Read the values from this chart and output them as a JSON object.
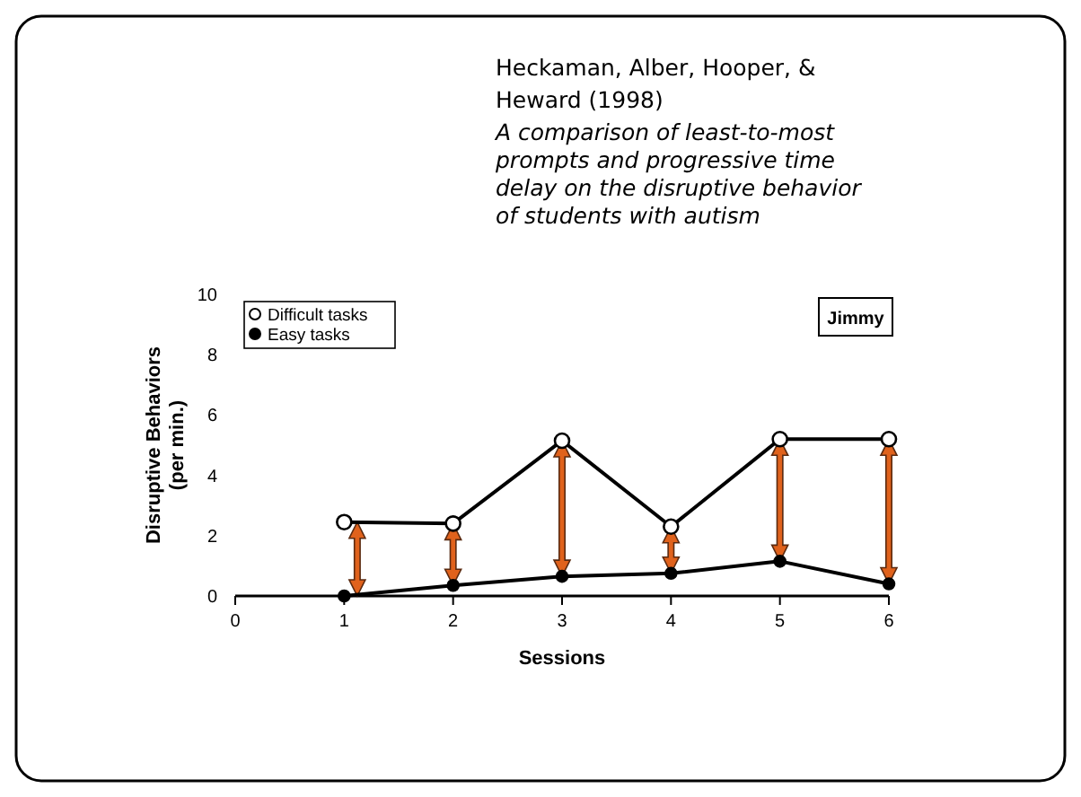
{
  "chart_data": {
    "type": "line",
    "title": "Heckaman, Alber, Hooper, & Heward (1998)",
    "subtitle": "A comparison of least-to-most prompts and progressive time delay on the disruptive behavior of students with autism",
    "xlabel": "Sessions",
    "ylabel": "Disruptive Behaviors (per min.)",
    "x": [
      1,
      2,
      3,
      4,
      5,
      6
    ],
    "series": [
      {
        "name": "Difficult tasks",
        "color": "#000000",
        "marker": "circle-open",
        "values": [
          2.45,
          2.4,
          5.15,
          2.3,
          5.2,
          5.2
        ]
      },
      {
        "name": "Easy tasks",
        "color": "#000000",
        "marker": "circle",
        "values": [
          0,
          0.35,
          0.65,
          0.75,
          1.15,
          0.4
        ]
      }
    ],
    "xlim": [
      0,
      6
    ],
    "ylim": [
      0,
      10
    ],
    "xticks": [
      0,
      1,
      2,
      3,
      4,
      5,
      6
    ],
    "yticks": [
      0,
      2,
      4,
      6,
      8,
      10
    ],
    "annotations": [
      "Jimmy"
    ],
    "legend": "top left",
    "grid": false
  }
}
